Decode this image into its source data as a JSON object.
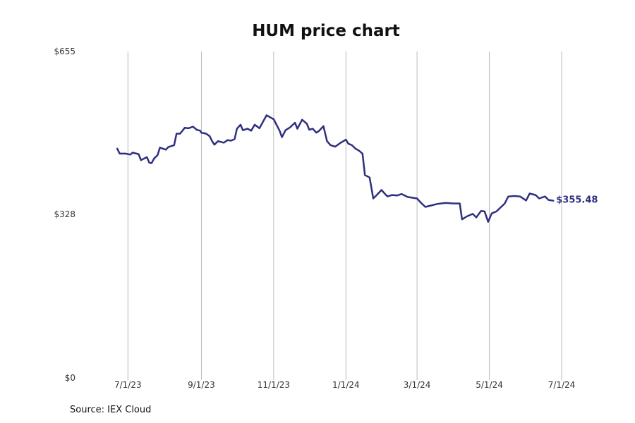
{
  "chart_data": {
    "type": "line",
    "title": "HUM price chart",
    "source": "Source: IEX Cloud",
    "xlabel": "",
    "ylabel": "",
    "grid": "vertical",
    "legend": "none",
    "line_color": "#2f2f7f",
    "grid_color": "#bbbbbb",
    "ylim": [
      0,
      655
    ],
    "y_ticks": [
      {
        "value": 0,
        "label": "$0"
      },
      {
        "value": 328,
        "label": "$328"
      },
      {
        "value": 655,
        "label": "$655"
      }
    ],
    "xlim": [
      "2023-06-07",
      "2024-07-01"
    ],
    "x_ticks": [
      {
        "date": "2023-07-01",
        "label": "7/1/23"
      },
      {
        "date": "2023-09-01",
        "label": "9/1/23"
      },
      {
        "date": "2023-11-01",
        "label": "11/1/23"
      },
      {
        "date": "2024-01-01",
        "label": "1/1/24"
      },
      {
        "date": "2024-03-01",
        "label": "3/1/24"
      },
      {
        "date": "2024-05-01",
        "label": "5/1/24"
      },
      {
        "date": "2024-07-01",
        "label": "7/1/24"
      }
    ],
    "end_label": "$355.48",
    "series": [
      {
        "values": [
          [
            "2023-06-22",
            460
          ],
          [
            "2023-06-24",
            450
          ],
          [
            "2023-06-29",
            450
          ],
          [
            "2023-07-03",
            448
          ],
          [
            "2023-07-05",
            452
          ],
          [
            "2023-07-10",
            449
          ],
          [
            "2023-07-12",
            437
          ],
          [
            "2023-07-17",
            443
          ],
          [
            "2023-07-19",
            432
          ],
          [
            "2023-07-21",
            431
          ],
          [
            "2023-07-23",
            440
          ],
          [
            "2023-07-26",
            447
          ],
          [
            "2023-07-28",
            462
          ],
          [
            "2023-08-02",
            458
          ],
          [
            "2023-08-04",
            463
          ],
          [
            "2023-08-09",
            467
          ],
          [
            "2023-08-11",
            490
          ],
          [
            "2023-08-14",
            490
          ],
          [
            "2023-08-16",
            496
          ],
          [
            "2023-08-18",
            502
          ],
          [
            "2023-08-21",
            501
          ],
          [
            "2023-08-25",
            504
          ],
          [
            "2023-08-28",
            498
          ],
          [
            "2023-08-31",
            496
          ],
          [
            "2023-09-01",
            492
          ],
          [
            "2023-09-05",
            490
          ],
          [
            "2023-09-08",
            485
          ],
          [
            "2023-09-10",
            475
          ],
          [
            "2023-09-12",
            468
          ],
          [
            "2023-09-15",
            475
          ],
          [
            "2023-09-20",
            472
          ],
          [
            "2023-09-23",
            477
          ],
          [
            "2023-09-26",
            476
          ],
          [
            "2023-09-29",
            479
          ],
          [
            "2023-10-01",
            500
          ],
          [
            "2023-10-04",
            508
          ],
          [
            "2023-10-06",
            497
          ],
          [
            "2023-10-10",
            500
          ],
          [
            "2023-10-13",
            496
          ],
          [
            "2023-10-16",
            508
          ],
          [
            "2023-10-20",
            501
          ],
          [
            "2023-10-23",
            514
          ],
          [
            "2023-10-26",
            527
          ],
          [
            "2023-10-29",
            523
          ],
          [
            "2023-11-01",
            519
          ],
          [
            "2023-11-03",
            510
          ],
          [
            "2023-11-06",
            496
          ],
          [
            "2023-11-08",
            483
          ],
          [
            "2023-11-11",
            497
          ],
          [
            "2023-11-15",
            503
          ],
          [
            "2023-11-19",
            512
          ],
          [
            "2023-11-21",
            500
          ],
          [
            "2023-11-25",
            518
          ],
          [
            "2023-11-29",
            510
          ],
          [
            "2023-12-01",
            498
          ],
          [
            "2023-12-04",
            500
          ],
          [
            "2023-12-07",
            492
          ],
          [
            "2023-12-09",
            495
          ],
          [
            "2023-12-13",
            505
          ],
          [
            "2023-12-16",
            475
          ],
          [
            "2023-12-19",
            467
          ],
          [
            "2023-12-23",
            464
          ],
          [
            "2023-12-27",
            471
          ],
          [
            "2024-01-01",
            478
          ],
          [
            "2024-01-03",
            470
          ],
          [
            "2024-01-06",
            467
          ],
          [
            "2024-01-09",
            460
          ],
          [
            "2024-01-12",
            456
          ],
          [
            "2024-01-15",
            450
          ],
          [
            "2024-01-17",
            407
          ],
          [
            "2024-01-21",
            402
          ],
          [
            "2024-01-24",
            360
          ],
          [
            "2024-01-27",
            367
          ],
          [
            "2024-01-31",
            377
          ],
          [
            "2024-02-03",
            369
          ],
          [
            "2024-02-05",
            364
          ],
          [
            "2024-02-09",
            367
          ],
          [
            "2024-02-13",
            366
          ],
          [
            "2024-02-17",
            369
          ],
          [
            "2024-02-22",
            363
          ],
          [
            "2024-03-01",
            360
          ],
          [
            "2024-03-04",
            352
          ],
          [
            "2024-03-08",
            343
          ],
          [
            "2024-03-13",
            346
          ],
          [
            "2024-03-18",
            349
          ],
          [
            "2024-03-25",
            351
          ],
          [
            "2024-04-01",
            350
          ],
          [
            "2024-04-06",
            350
          ],
          [
            "2024-04-08",
            318
          ],
          [
            "2024-04-12",
            324
          ],
          [
            "2024-04-17",
            329
          ],
          [
            "2024-04-20",
            322
          ],
          [
            "2024-04-24",
            335
          ],
          [
            "2024-04-27",
            334
          ],
          [
            "2024-04-30",
            313
          ],
          [
            "2024-05-03",
            330
          ],
          [
            "2024-05-07",
            334
          ],
          [
            "2024-05-10",
            341
          ],
          [
            "2024-05-14",
            350
          ],
          [
            "2024-05-17",
            364
          ],
          [
            "2024-05-22",
            365
          ],
          [
            "2024-05-27",
            364
          ],
          [
            "2024-06-01",
            356
          ],
          [
            "2024-06-04",
            370
          ],
          [
            "2024-06-09",
            367
          ],
          [
            "2024-06-12",
            360
          ],
          [
            "2024-06-17",
            364
          ],
          [
            "2024-06-20",
            357
          ],
          [
            "2024-06-24",
            355.48
          ]
        ]
      }
    ]
  }
}
